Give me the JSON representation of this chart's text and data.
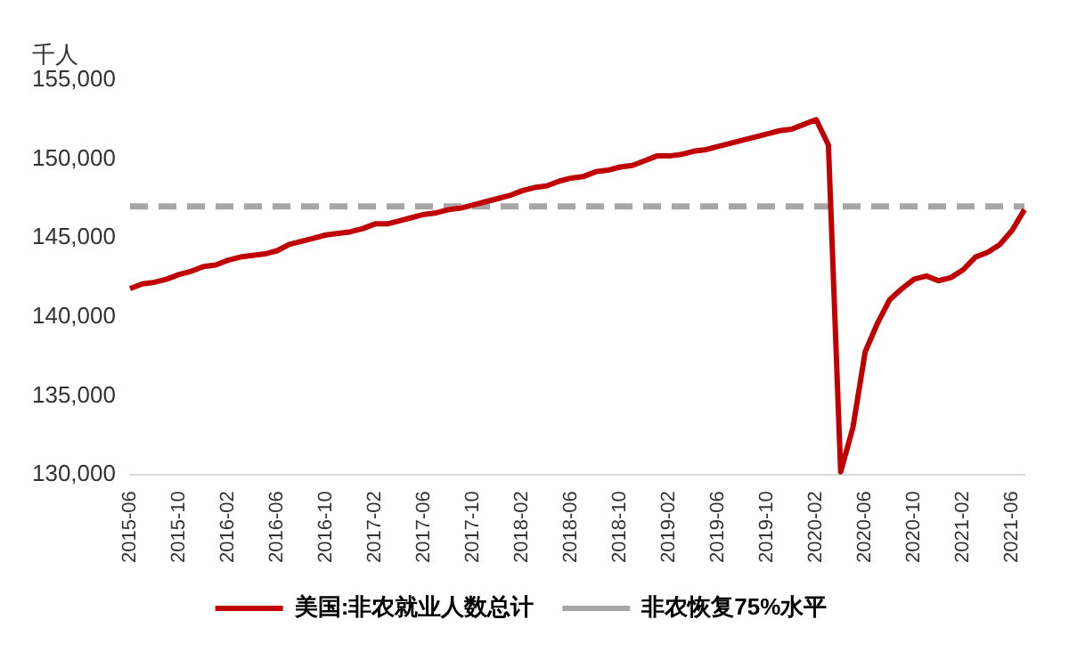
{
  "chart_data": {
    "type": "line",
    "ylabel": "千人",
    "categories": [
      "2015-06",
      null,
      null,
      null,
      "2015-10",
      null,
      null,
      null,
      "2016-02",
      null,
      null,
      null,
      "2016-06",
      null,
      null,
      null,
      "2016-10",
      null,
      null,
      null,
      "2017-02",
      null,
      null,
      null,
      "2017-06",
      null,
      null,
      null,
      "2017-10",
      null,
      null,
      null,
      "2018-02",
      null,
      null,
      null,
      "2018-06",
      null,
      null,
      null,
      "2018-10",
      null,
      null,
      null,
      "2019-02",
      null,
      null,
      null,
      "2019-06",
      null,
      null,
      null,
      "2019-10",
      null,
      null,
      null,
      "2020-02",
      null,
      null,
      null,
      "2020-06",
      null,
      null,
      null,
      "2020-10",
      null,
      null,
      null,
      "2021-02",
      null,
      null,
      null,
      "2021-06",
      null
    ],
    "series": [
      {
        "name": "美国:非农就业人数总计",
        "color": "#c00000",
        "line_style": "solid",
        "values": [
          141800,
          142100,
          142200,
          142400,
          142700,
          142900,
          143200,
          143300,
          143600,
          143800,
          143900,
          144000,
          144200,
          144600,
          144800,
          145000,
          145200,
          145300,
          145400,
          145600,
          145900,
          145900,
          146100,
          146300,
          146500,
          146600,
          146800,
          146900,
          147100,
          147300,
          147500,
          147700,
          148000,
          148200,
          148300,
          148600,
          148800,
          148900,
          149200,
          149300,
          149500,
          149600,
          149900,
          150200,
          150200,
          150300,
          150500,
          150600,
          150800,
          151000,
          151200,
          151400,
          151600,
          151800,
          151900,
          152200,
          152500,
          150900,
          130200,
          133000,
          137800,
          139600,
          141100,
          141800,
          142400,
          142600,
          142300,
          142500,
          143000,
          143800,
          144100,
          144600,
          145500,
          146800
        ]
      },
      {
        "name": "非农恢复75%水平",
        "color": "#a6a6a6",
        "line_style": "dashed",
        "values": [
          147000,
          147000,
          147000,
          147000,
          147000,
          147000,
          147000,
          147000,
          147000,
          147000,
          147000,
          147000,
          147000,
          147000,
          147000,
          147000,
          147000,
          147000,
          147000,
          147000,
          147000,
          147000,
          147000,
          147000,
          147000,
          147000,
          147000,
          147000,
          147000,
          147000,
          147000,
          147000,
          147000,
          147000,
          147000,
          147000,
          147000,
          147000,
          147000,
          147000,
          147000,
          147000,
          147000,
          147000,
          147000,
          147000,
          147000,
          147000,
          147000,
          147000,
          147000,
          147000,
          147000,
          147000,
          147000,
          147000,
          147000,
          147000,
          147000,
          147000,
          147000,
          147000,
          147000,
          147000,
          147000,
          147000,
          147000,
          147000,
          147000,
          147000,
          147000,
          147000,
          147000,
          147000
        ]
      }
    ],
    "ylim": [
      130000,
      155000
    ],
    "yticks": [
      {
        "value": 130000,
        "label": "130,000"
      },
      {
        "value": 135000,
        "label": "135,000"
      },
      {
        "value": 140000,
        "label": "140,000"
      },
      {
        "value": 145000,
        "label": "145,000"
      },
      {
        "value": 150000,
        "label": "150,000"
      },
      {
        "value": 155000,
        "label": "155,000"
      }
    ],
    "grid": false,
    "legend": "bottom",
    "marker": "none"
  }
}
